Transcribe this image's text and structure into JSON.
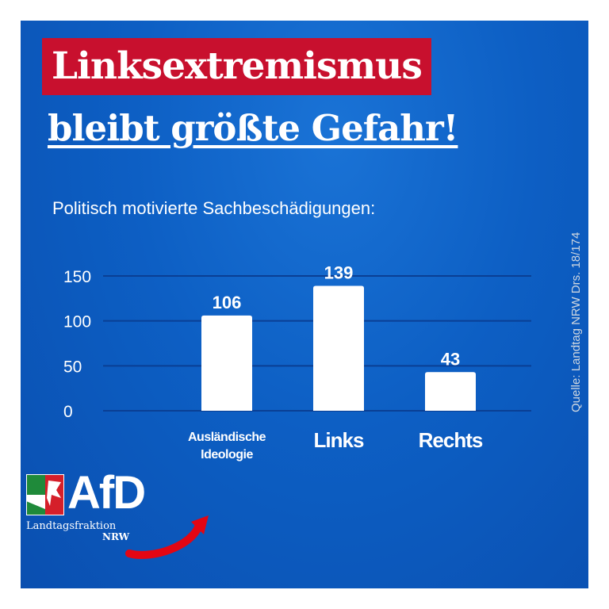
{
  "headline": {
    "line1": "Linksextremismus",
    "line2": "bleibt größte Gefahr!"
  },
  "subtitle": "Politisch motivierte Sachbeschädigungen:",
  "chart_data": {
    "type": "bar",
    "categories": [
      "Ausländische\nIdeologie",
      "Links",
      "Rechts"
    ],
    "values": [
      106,
      139,
      43
    ],
    "data_labels": [
      "106",
      "139",
      "43"
    ],
    "yticks": [
      0,
      50,
      100,
      150
    ],
    "ylim": [
      0,
      150
    ],
    "grid": true,
    "title": "",
    "xlabel": "",
    "ylabel": ""
  },
  "source": "Quelle: Landtag NRW Drs. 18/174",
  "logo": {
    "name": "AfD",
    "subline": "Landtagsfraktion",
    "region": "NRW"
  },
  "colors": {
    "background": "#0d5fc4",
    "headline_bg": "#c8102e",
    "bar": "#ffffff",
    "grid": "#0a3f94",
    "arrow": "#e30613"
  }
}
